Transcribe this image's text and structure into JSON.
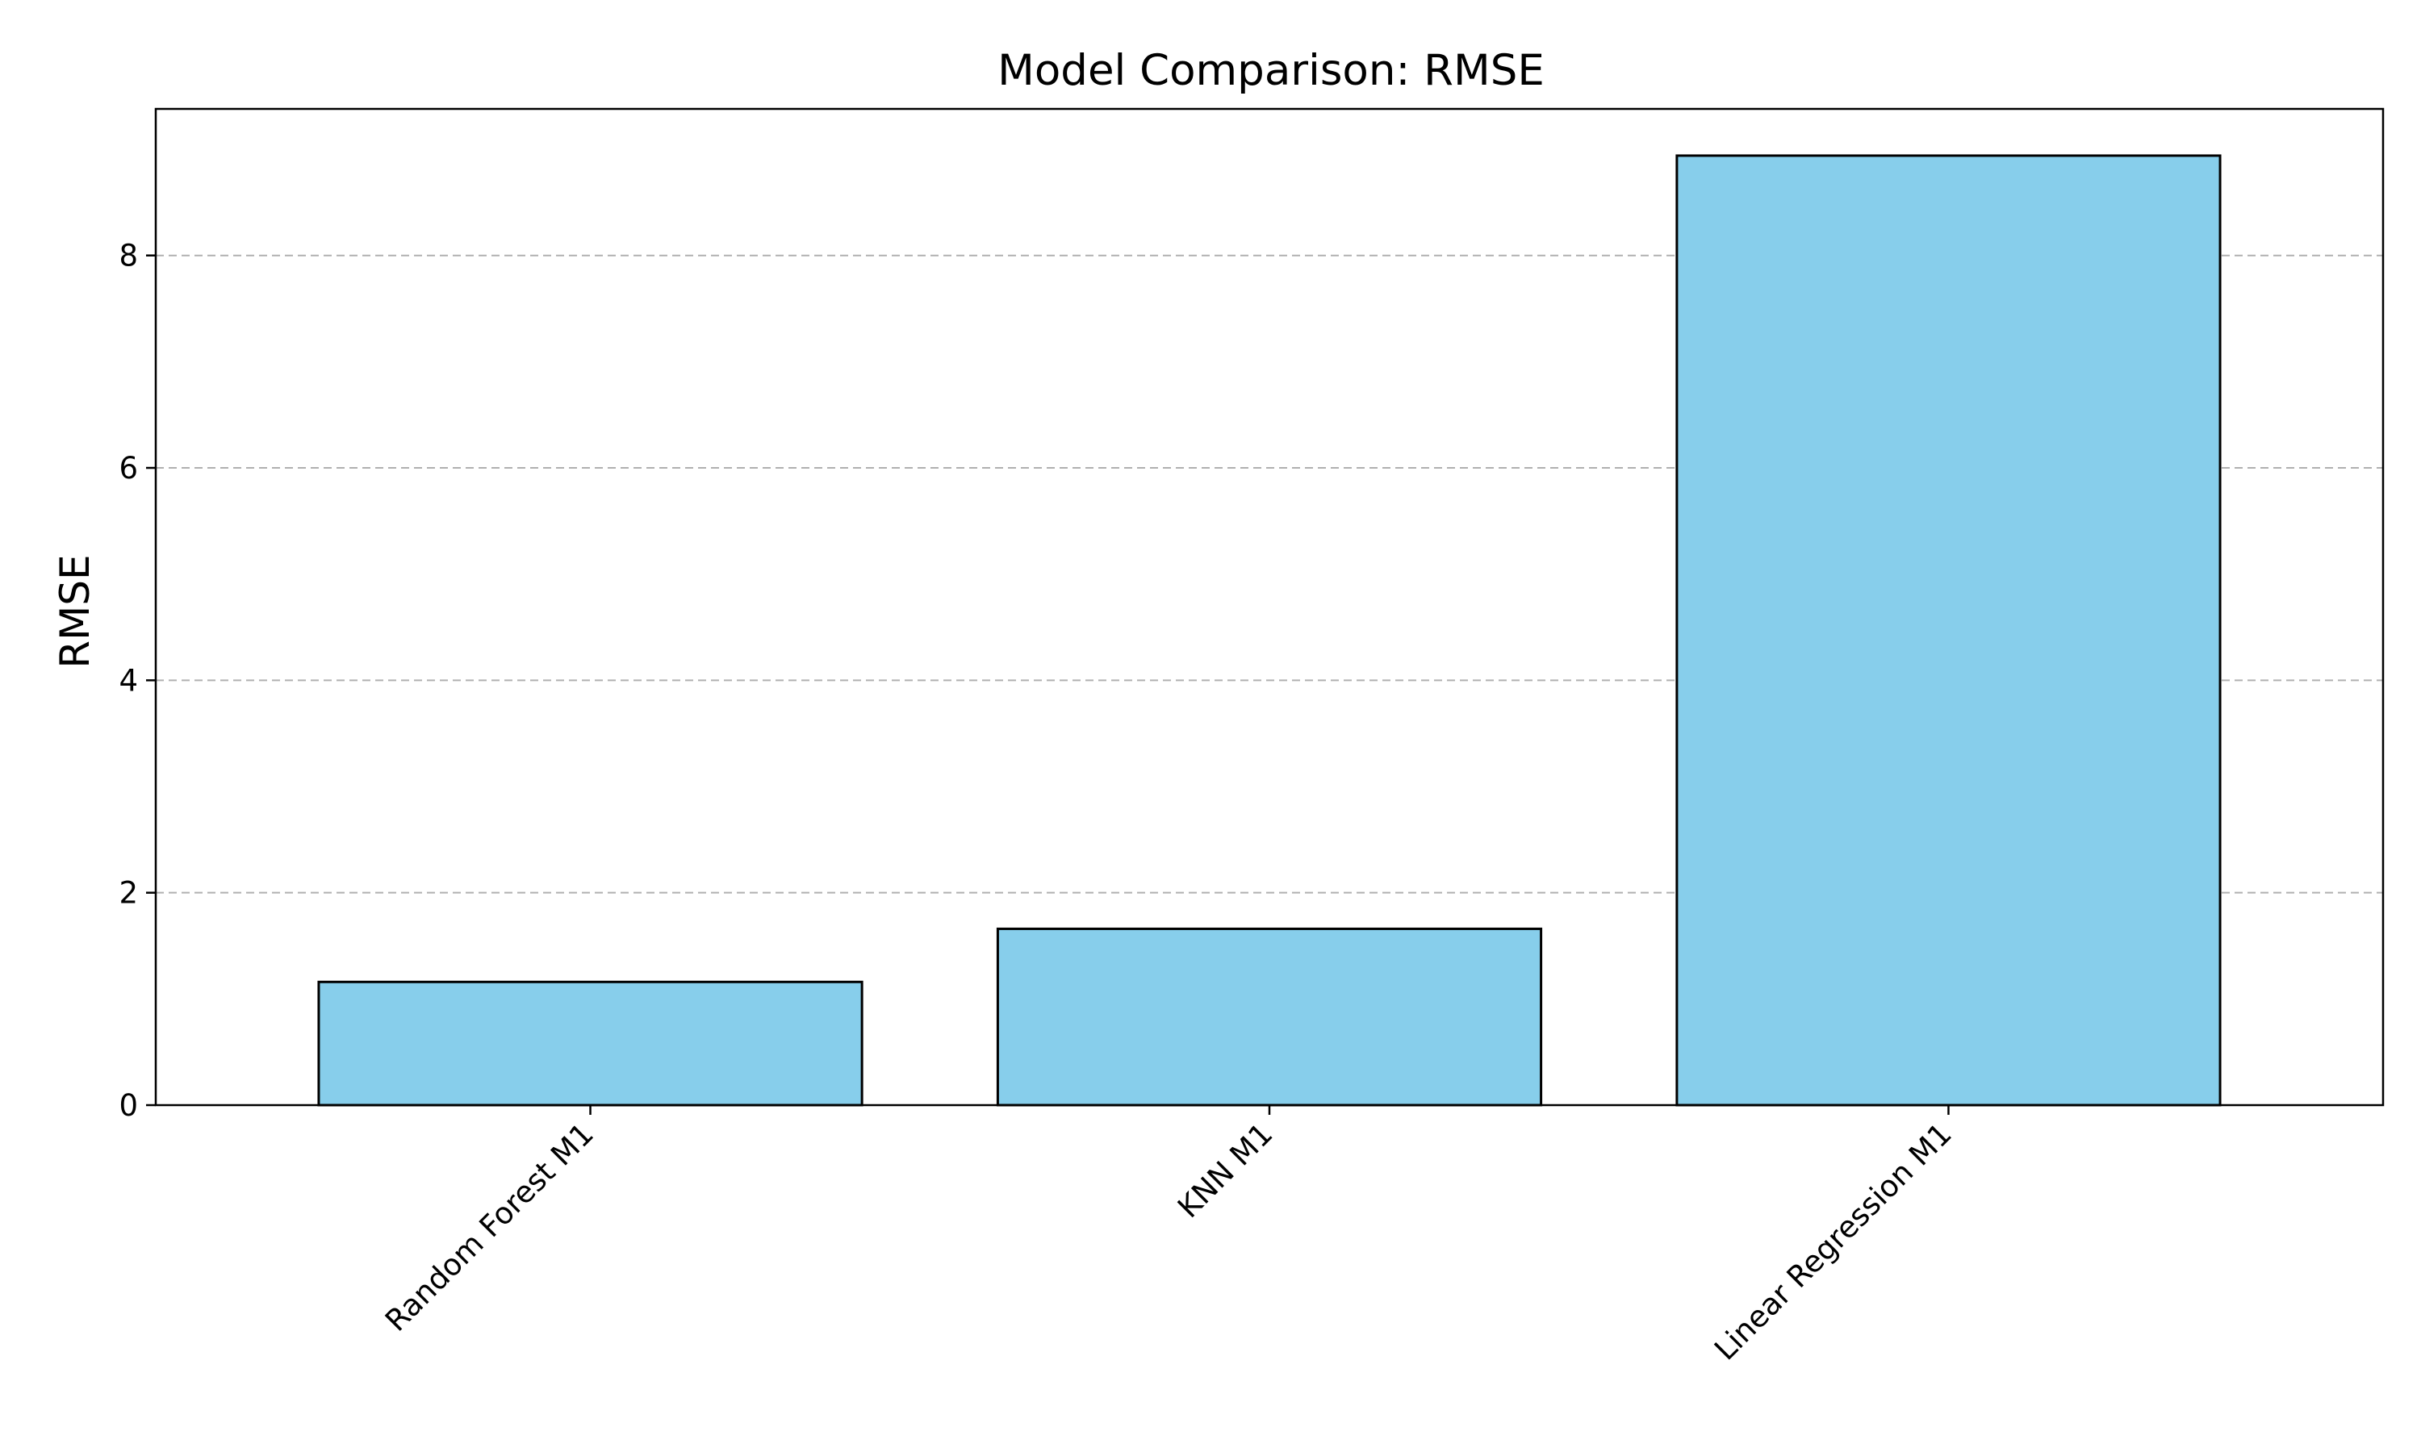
{
  "chart_data": {
    "type": "bar",
    "title": "Model Comparison: RMSE",
    "xlabel": "",
    "ylabel": "RMSE",
    "categories": [
      "Random Forest M1",
      "KNN M1",
      "Linear Regression M1"
    ],
    "values": [
      1.16,
      1.66,
      8.94
    ],
    "ylim": [
      0,
      9.38
    ],
    "yticks": [
      0,
      2,
      4,
      6,
      8
    ],
    "grid": "y-dashed",
    "bar_color": "#87CEEB",
    "bar_edge_color": "#000000"
  }
}
